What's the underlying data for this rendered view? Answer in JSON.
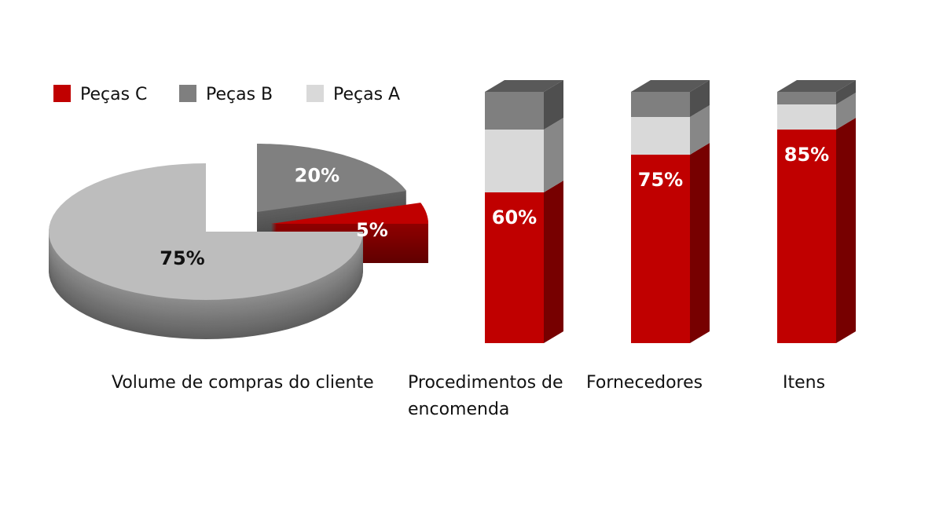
{
  "chart_data": [
    {
      "type": "pie",
      "label": "Volume de compras do cliente",
      "values": [
        75,
        20,
        5
      ],
      "value_labels": [
        "75%",
        "20%",
        "5%"
      ],
      "colors": [
        "#bdbdbd",
        "#808080",
        "#c00000"
      ]
    },
    {
      "type": "stacked_bar",
      "categories": [
        "Procedimentos de encomenda",
        "Fornecedores",
        "Itens"
      ],
      "series": [
        {
          "name": "Peças C",
          "color": "#c00000",
          "values": [
            60,
            75,
            85
          ],
          "value_labels": [
            "60%",
            "75%",
            "85%"
          ]
        },
        {
          "name": "Peças A",
          "color": "#d9d9d9",
          "values": [
            25,
            15,
            10
          ]
        },
        {
          "name": "Peças B",
          "color": "#7f7f7f",
          "values": [
            15,
            10,
            5
          ]
        }
      ]
    }
  ]
}
